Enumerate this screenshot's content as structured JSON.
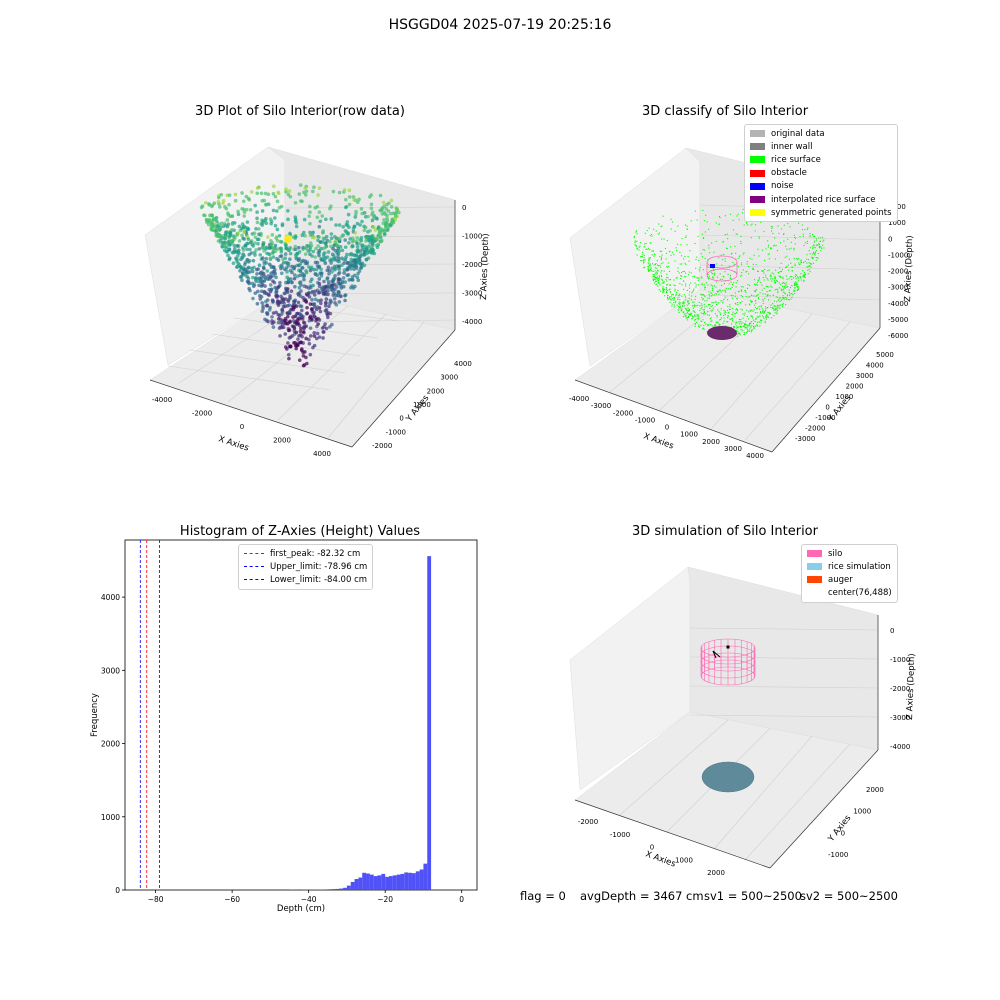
{
  "figure": {
    "suptitle": "HSGGD04 2025-07-19 20:25:16",
    "footer": {
      "flag": "flag = 0",
      "avg_depth": "avgDepth = 3467 cm",
      "sv1": "sv1 = 500~2500",
      "sv2": "sv2 = 500~2500"
    }
  },
  "colors": {
    "original_data": "#b3b3b3",
    "inner_wall": "#808080",
    "rice_surface": "#00ff00",
    "obstacle": "#ff0000",
    "noise": "#0000ff",
    "interpolated": "#800080",
    "symmetric": "#ffff00",
    "silo": "#ff69b4",
    "rice_simulation": "#87ceeb",
    "auger": "#ff4500",
    "histogram_bar": "#4848f8"
  },
  "chart_data": [
    {
      "type": "scatter",
      "projection": "3d",
      "title": "3D Plot of Silo Interior(row data)",
      "xlabel": "X Axies",
      "ylabel": "Y Axies",
      "zlabel": "Z Axies (Depth)",
      "xticks": [
        "-4000",
        "-2000",
        "0",
        "2000",
        "4000"
      ],
      "yticks": [
        "-2000",
        "-1000",
        "0",
        "1000",
        "2000",
        "3000",
        "4000"
      ],
      "zticks": [
        "0",
        "-1000",
        "-2000",
        "-3000",
        "-4000"
      ],
      "colormap": "viridis",
      "description": "bowl-shaped point cloud, depth colored"
    },
    {
      "type": "scatter",
      "projection": "3d",
      "title": "3D classify of Silo Interior",
      "xlabel": "X Axies",
      "ylabel": "Y Axies",
      "zlabel": "Z Axies (Depth)",
      "xticks": [
        "-4000",
        "-3000",
        "-2000",
        "-1000",
        "0",
        "1000",
        "2000",
        "3000",
        "4000"
      ],
      "yticks": [
        "-3000",
        "-2000",
        "-1000",
        "0",
        "1000",
        "2000",
        "3000",
        "4000",
        "5000"
      ],
      "zticks": [
        "2000",
        "1000",
        "0",
        "-1000",
        "-2000",
        "-3000",
        "-4000",
        "-5000",
        "-6000"
      ],
      "legend": [
        "original data",
        "inner wall",
        "rice surface",
        "obstacle",
        "noise",
        "interpolated rice surface",
        "symmetric generated points"
      ],
      "legend_position": "upper right"
    },
    {
      "type": "bar",
      "title": "Histogram of Z-Axies (Height) Values",
      "xlabel": "Depth (cm)",
      "ylabel": "Frequency",
      "xlim": [
        -88,
        4
      ],
      "ylim": [
        0,
        4780
      ],
      "xticks": [
        -80,
        -60,
        -40,
        -20,
        0
      ],
      "yticks": [
        0,
        1000,
        2000,
        3000,
        4000
      ],
      "bin_width": 1,
      "bins": [
        {
          "x": -45,
          "y": 5
        },
        {
          "x": -44,
          "y": 4
        },
        {
          "x": -42,
          "y": 5
        },
        {
          "x": -41,
          "y": 5
        },
        {
          "x": -40,
          "y": 5
        },
        {
          "x": -39,
          "y": 5
        },
        {
          "x": -38,
          "y": 6
        },
        {
          "x": -37,
          "y": 6
        },
        {
          "x": -36,
          "y": 8
        },
        {
          "x": -35,
          "y": 10
        },
        {
          "x": -34,
          "y": 12
        },
        {
          "x": -33,
          "y": 15
        },
        {
          "x": -32,
          "y": 20
        },
        {
          "x": -31,
          "y": 30
        },
        {
          "x": -30,
          "y": 60
        },
        {
          "x": -29,
          "y": 110
        },
        {
          "x": -28,
          "y": 150
        },
        {
          "x": -27,
          "y": 170
        },
        {
          "x": -26,
          "y": 235
        },
        {
          "x": -25,
          "y": 225
        },
        {
          "x": -24,
          "y": 210
        },
        {
          "x": -23,
          "y": 190
        },
        {
          "x": -22,
          "y": 200
        },
        {
          "x": -21,
          "y": 220
        },
        {
          "x": -20,
          "y": 180
        },
        {
          "x": -19,
          "y": 190
        },
        {
          "x": -18,
          "y": 200
        },
        {
          "x": -17,
          "y": 210
        },
        {
          "x": -16,
          "y": 220
        },
        {
          "x": -15,
          "y": 240
        },
        {
          "x": -14,
          "y": 235
        },
        {
          "x": -13,
          "y": 230
        },
        {
          "x": -12,
          "y": 255
        },
        {
          "x": -11,
          "y": 280
        },
        {
          "x": -10,
          "y": 360
        },
        {
          "x": -9,
          "y": 4560
        }
      ],
      "vlines": [
        {
          "label": "first_peak: -82.32 cm",
          "x": -82.32,
          "color": "#ff0000"
        },
        {
          "label": "Upper_limit: -78.96 cm",
          "x": -78.96,
          "color": "#0000ff"
        },
        {
          "label": "Lower_limit: -84.00 cm",
          "x": -84.0,
          "color": "#0000ff"
        }
      ],
      "legend_position": "upper center"
    },
    {
      "type": "scatter",
      "projection": "3d",
      "title": "3D simulation of Silo Interior",
      "xlabel": "X Axies",
      "ylabel": "Y Axies",
      "zlabel": "Z Axies (Depth)",
      "xticks": [
        "-2000",
        "-1000",
        "0",
        "1000",
        "2000"
      ],
      "yticks": [
        "-1000",
        "0",
        "1000",
        "2000"
      ],
      "zticks": [
        "0",
        "-1000",
        "-2000",
        "-3000",
        "-4000"
      ],
      "legend": [
        "silo",
        "rice simulation",
        "auger",
        "center(76,488)"
      ],
      "legend_position": "upper right"
    }
  ]
}
